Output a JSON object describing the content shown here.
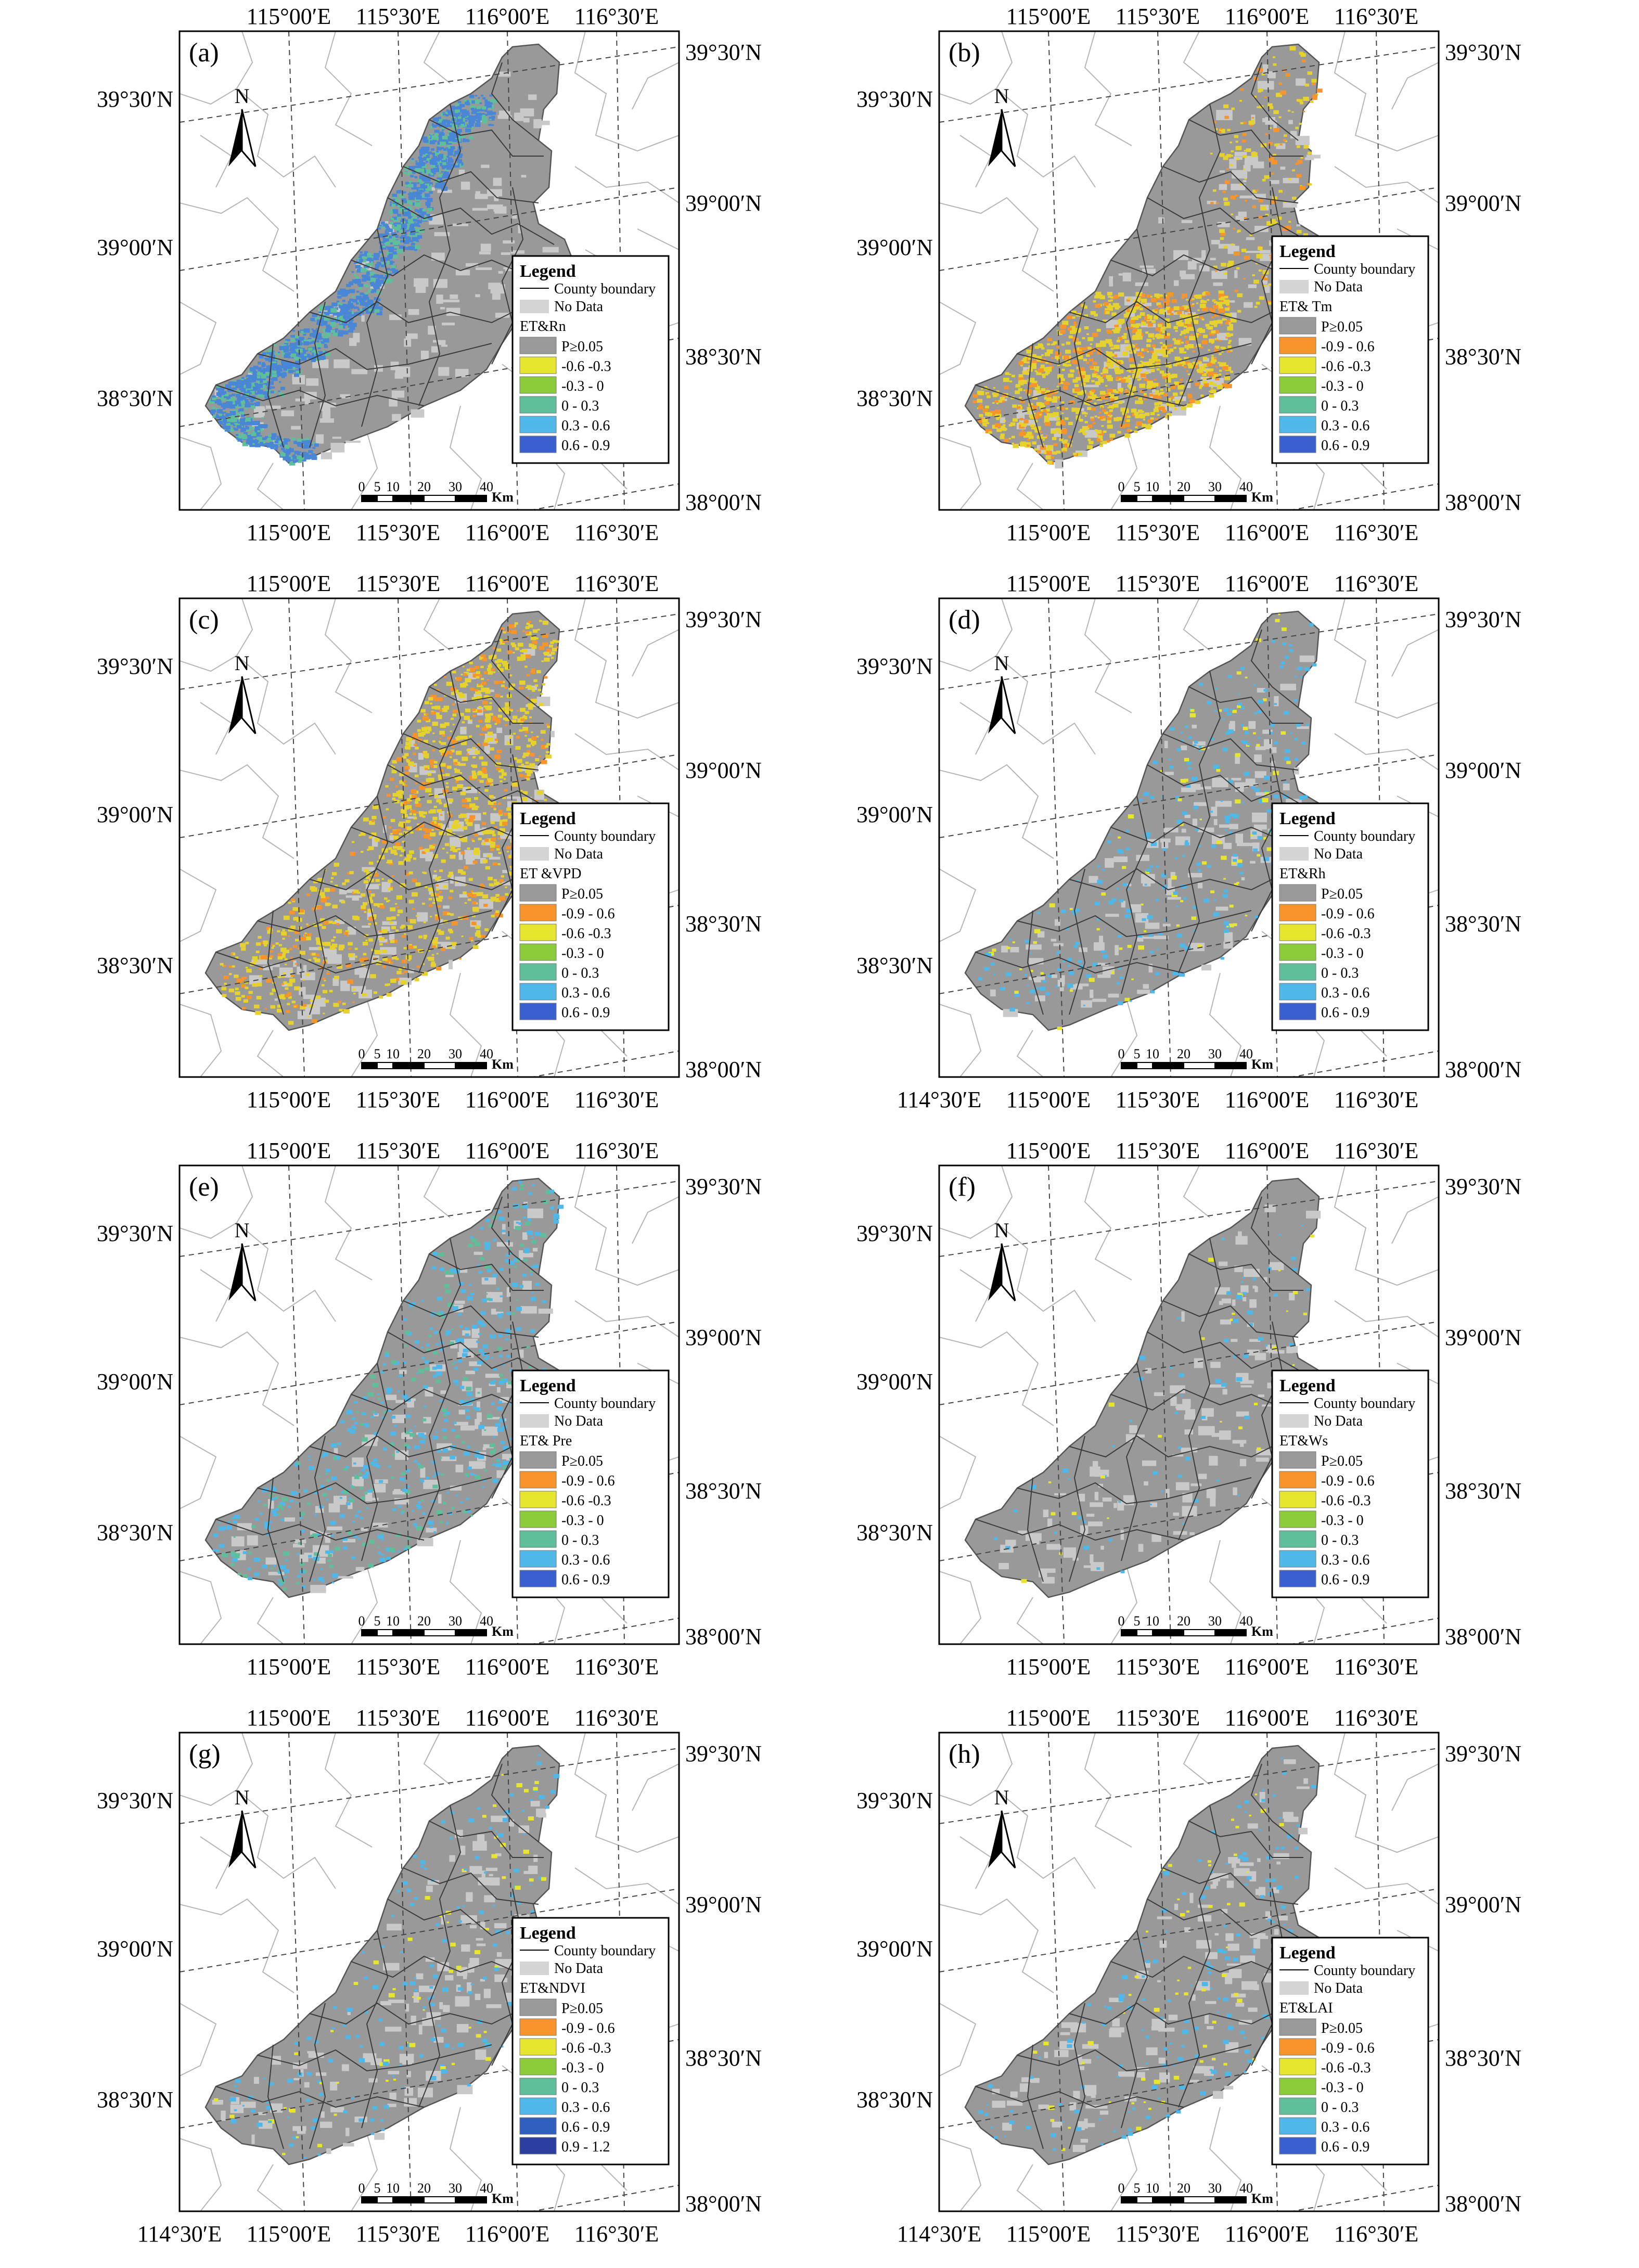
{
  "figure": {
    "panels": [
      {
        "id": "a",
        "panel_label": "(a)",
        "top_lon_labels": [
          "115°00′E",
          "115°30′E",
          "116°00′E",
          "116°30′E"
        ],
        "bottom_lon_labels": [
          "115°00′E",
          "115°30′E",
          "116°00′E",
          "116°30′E"
        ],
        "left_lat_labels": [
          "39°30′N",
          "39°00′N",
          "38°30′N"
        ],
        "right_lat_labels": [
          "39°30′N",
          "39°00′N",
          "38°30′N",
          "38°00′N"
        ],
        "legend": {
          "title": "Legend",
          "boundary_label": "County boundary",
          "nodata_label": "No Data",
          "variable_label": "ET&Rn",
          "classes": [
            {
              "label": "P≥0.05",
              "color": "#9a9a9a"
            },
            {
              "label": "-0.6 -0.3",
              "color": "#e6e62e"
            },
            {
              "label": "-0.3 - 0",
              "color": "#8ccc3a"
            },
            {
              "label": "0 - 0.3",
              "color": "#5fbf9a"
            },
            {
              "label": "0.3 - 0.6",
              "color": "#4fb8e8"
            },
            {
              "label": "0.6 - 0.9",
              "color": "#3a5fcf"
            }
          ]
        },
        "pattern": {
          "primary_color": "#4a86d6",
          "secondary_color": "#5fbf9a",
          "intensity": 0.85,
          "region": "southwest-edge"
        },
        "scale_ticks": [
          "0",
          "5",
          "10",
          "20",
          "30",
          "40"
        ],
        "scale_unit": "Km",
        "north_label": "N"
      },
      {
        "id": "b",
        "panel_label": "(b)",
        "top_lon_labels": [
          "115°00′E",
          "115°30′E",
          "116°00′E",
          "116°30′E"
        ],
        "bottom_lon_labels": [
          "115°00′E",
          "115°30′E",
          "116°00′E",
          "116°30′E"
        ],
        "left_lat_labels": [
          "39°30′N",
          "39°00′N",
          "38°30′N"
        ],
        "right_lat_labels": [
          "39°30′N",
          "39°00′N",
          "38°30′N",
          "38°00′N"
        ],
        "legend": {
          "title": "Legend",
          "boundary_label": "County boundary",
          "nodata_label": "No Data",
          "variable_label": "ET& Tm",
          "classes": [
            {
              "label": "P≥0.05",
              "color": "#9a9a9a"
            },
            {
              "label": "-0.9 - 0.6",
              "color": "#f7942c"
            },
            {
              "label": "-0.6 -0.3",
              "color": "#e6e62e"
            },
            {
              "label": "-0.3 - 0",
              "color": "#8ccc3a"
            },
            {
              "label": "0 - 0.3",
              "color": "#5fbf9a"
            },
            {
              "label": "0.3 - 0.6",
              "color": "#4fb8e8"
            },
            {
              "label": "0.6 - 0.9",
              "color": "#3a5fcf"
            }
          ]
        },
        "pattern": {
          "primary_color": "#e6d22e",
          "secondary_color": "#f7942c",
          "intensity": 0.8,
          "region": "southwest"
        },
        "scale_ticks": [
          "0",
          "5",
          "10",
          "20",
          "30",
          "40"
        ],
        "scale_unit": "Km",
        "north_label": "N"
      },
      {
        "id": "c",
        "panel_label": "(c)",
        "top_lon_labels": [
          "115°00′E",
          "115°30′E",
          "116°00′E",
          "116°30′E"
        ],
        "bottom_lon_labels": [
          "115°00′E",
          "115°30′E",
          "116°00′E",
          "116°30′E"
        ],
        "left_lat_labels": [
          "39°30′N",
          "39°00′N",
          "38°30′N"
        ],
        "right_lat_labels": [
          "39°30′N",
          "39°00′N",
          "38°30′N",
          "38°00′N"
        ],
        "legend": {
          "title": "Legend",
          "boundary_label": "County boundary",
          "nodata_label": "No Data",
          "variable_label": "ET &VPD",
          "classes": [
            {
              "label": "P≥0.05",
              "color": "#9a9a9a"
            },
            {
              "label": "-0.9 - 0.6",
              "color": "#f7942c"
            },
            {
              "label": "-0.6 -0.3",
              "color": "#e6e62e"
            },
            {
              "label": "-0.3 - 0",
              "color": "#8ccc3a"
            },
            {
              "label": "0 - 0.3",
              "color": "#5fbf9a"
            },
            {
              "label": "0.3 - 0.6",
              "color": "#4fb8e8"
            },
            {
              "label": "0.6 - 0.9",
              "color": "#3a5fcf"
            }
          ]
        },
        "pattern": {
          "primary_color": "#e6d22e",
          "secondary_color": "#f7942c",
          "intensity": 0.9,
          "region": "widespread"
        },
        "scale_ticks": [
          "0",
          "5",
          "10",
          "20",
          "30",
          "40"
        ],
        "scale_unit": "Km",
        "north_label": "N"
      },
      {
        "id": "d",
        "panel_label": "(d)",
        "top_lon_labels": [
          "115°00′E",
          "115°30′E",
          "116°00′E",
          "116°30′E"
        ],
        "bottom_lon_labels": [
          "114°30′E",
          "115°00′E",
          "115°30′E",
          "116°00′E",
          "116°30′E"
        ],
        "left_lat_labels": [
          "39°30′N",
          "39°00′N",
          "38°30′N"
        ],
        "right_lat_labels": [
          "39°30′N",
          "39°00′N",
          "38°30′N",
          "38°00′N"
        ],
        "legend": {
          "title": "Legend",
          "boundary_label": "County boundary",
          "nodata_label": "No Data",
          "variable_label": "ET&Rh",
          "classes": [
            {
              "label": "P≥0.05",
              "color": "#9a9a9a"
            },
            {
              "label": "-0.9 - 0.6",
              "color": "#f7942c"
            },
            {
              "label": "-0.6 -0.3",
              "color": "#e6e62e"
            },
            {
              "label": "-0.3 - 0",
              "color": "#8ccc3a"
            },
            {
              "label": "0 - 0.3",
              "color": "#5fbf9a"
            },
            {
              "label": "0.3 - 0.6",
              "color": "#4fb8e8"
            },
            {
              "label": "0.6 - 0.9",
              "color": "#3a5fcf"
            }
          ]
        },
        "pattern": {
          "primary_color": "#4fb8e8",
          "secondary_color": "#e6e62e",
          "intensity": 0.3,
          "region": "scattered"
        },
        "scale_ticks": [
          "0",
          "5",
          "10",
          "20",
          "30",
          "40"
        ],
        "scale_unit": "Km",
        "north_label": "N"
      },
      {
        "id": "e",
        "panel_label": "(e)",
        "top_lon_labels": [
          "115°00′E",
          "115°30′E",
          "116°00′E",
          "116°30′E"
        ],
        "bottom_lon_labels": [
          "115°00′E",
          "115°30′E",
          "116°00′E",
          "116°30′E"
        ],
        "left_lat_labels": [
          "39°30′N",
          "39°00′N",
          "38°30′N"
        ],
        "right_lat_labels": [
          "39°30′N",
          "39°00′N",
          "38°30′N",
          "38°00′N"
        ],
        "legend": {
          "title": "Legend",
          "boundary_label": "County boundary",
          "nodata_label": "No Data",
          "variable_label": "ET& Pre",
          "classes": [
            {
              "label": "P≥0.05",
              "color": "#9a9a9a"
            },
            {
              "label": "-0.9 - 0.6",
              "color": "#f7942c"
            },
            {
              "label": "-0.6 -0.3",
              "color": "#e6e62e"
            },
            {
              "label": "-0.3 - 0",
              "color": "#8ccc3a"
            },
            {
              "label": "0 - 0.3",
              "color": "#5fbf9a"
            },
            {
              "label": "0.3 - 0.6",
              "color": "#4fb8e8"
            },
            {
              "label": "0.6 - 0.9",
              "color": "#3a5fcf"
            }
          ]
        },
        "pattern": {
          "primary_color": "#4fb8e8",
          "secondary_color": "#5fbf9a",
          "intensity": 0.55,
          "region": "scattered"
        },
        "scale_ticks": [
          "0",
          "5",
          "10",
          "20",
          "30",
          "40"
        ],
        "scale_unit": "Km",
        "north_label": "N"
      },
      {
        "id": "f",
        "panel_label": "(f)",
        "top_lon_labels": [
          "115°00′E",
          "115°30′E",
          "116°00′E",
          "116°30′E"
        ],
        "bottom_lon_labels": [
          "115°00′E",
          "115°30′E",
          "116°00′E",
          "116°30′E"
        ],
        "left_lat_labels": [
          "39°30′N",
          "39°00′N",
          "38°30′N"
        ],
        "right_lat_labels": [
          "39°30′N",
          "39°00′N",
          "38°30′N",
          "38°00′N"
        ],
        "legend": {
          "title": "Legend",
          "boundary_label": "County boundary",
          "nodata_label": "No Data",
          "variable_label": "ET&Ws",
          "classes": [
            {
              "label": "P≥0.05",
              "color": "#9a9a9a"
            },
            {
              "label": "-0.9 - 0.6",
              "color": "#f7942c"
            },
            {
              "label": "-0.6 -0.3",
              "color": "#e6e62e"
            },
            {
              "label": "-0.3 - 0",
              "color": "#8ccc3a"
            },
            {
              "label": "0 - 0.3",
              "color": "#5fbf9a"
            },
            {
              "label": "0.3 - 0.6",
              "color": "#4fb8e8"
            },
            {
              "label": "0.6 - 0.9",
              "color": "#3a5fcf"
            }
          ]
        },
        "pattern": {
          "primary_color": "#4fb8e8",
          "secondary_color": "#e6e62e",
          "intensity": 0.08,
          "region": "scattered"
        },
        "scale_ticks": [
          "0",
          "5",
          "10",
          "20",
          "30",
          "40"
        ],
        "scale_unit": "Km",
        "north_label": "N"
      },
      {
        "id": "g",
        "panel_label": "(g)",
        "top_lon_labels": [
          "115°00′E",
          "115°30′E",
          "116°00′E",
          "116°30′E"
        ],
        "bottom_lon_labels": [
          "114°30′E",
          "115°00′E",
          "115°30′E",
          "116°00′E",
          "116°30′E"
        ],
        "left_lat_labels": [
          "39°30′N",
          "39°00′N",
          "38°30′N"
        ],
        "right_lat_labels": [
          "39°30′N",
          "39°00′N",
          "38°30′N",
          "38°00′N"
        ],
        "legend": {
          "title": "Legend",
          "boundary_label": "County boundary",
          "nodata_label": "No Data",
          "variable_label": "ET&NDVI",
          "classes": [
            {
              "label": "P≥0.05",
              "color": "#9a9a9a"
            },
            {
              "label": "-0.9 - 0.6",
              "color": "#f7942c"
            },
            {
              "label": "-0.6 -0.3",
              "color": "#e6e62e"
            },
            {
              "label": "-0.3 - 0",
              "color": "#8ccc3a"
            },
            {
              "label": "0 - 0.3",
              "color": "#5fbf9a"
            },
            {
              "label": "0.3 - 0.6",
              "color": "#4fb8e8"
            },
            {
              "label": "0.6 - 0.9",
              "color": "#2f5fbf"
            },
            {
              "label": "0.9 - 1.2",
              "color": "#2a3fa0"
            }
          ]
        },
        "pattern": {
          "primary_color": "#4fb8e8",
          "secondary_color": "#e6e62e",
          "intensity": 0.2,
          "region": "scattered"
        },
        "scale_ticks": [
          "0",
          "5",
          "10",
          "20",
          "30",
          "40"
        ],
        "scale_unit": "Km",
        "north_label": "N"
      },
      {
        "id": "h",
        "panel_label": "(h)",
        "top_lon_labels": [
          "115°00′E",
          "115°30′E",
          "116°00′E",
          "116°30′E"
        ],
        "bottom_lon_labels": [
          "114°30′E",
          "115°00′E",
          "115°30′E",
          "116°00′E",
          "116°30′E"
        ],
        "left_lat_labels": [
          "39°30′N",
          "39°00′N",
          "38°30′N"
        ],
        "right_lat_labels": [
          "39°30′N",
          "39°00′N",
          "38°30′N",
          "38°00′N"
        ],
        "legend": {
          "title": "Legend",
          "boundary_label": "County boundary",
          "nodata_label": "No Data",
          "variable_label": "ET&LAI",
          "classes": [
            {
              "label": "P≥0.05",
              "color": "#9a9a9a"
            },
            {
              "label": "-0.9 - 0.6",
              "color": "#f7942c"
            },
            {
              "label": "-0.6 -0.3",
              "color": "#e6e62e"
            },
            {
              "label": "-0.3 - 0",
              "color": "#8ccc3a"
            },
            {
              "label": "0 - 0.3",
              "color": "#5fbf9a"
            },
            {
              "label": "0.3 - 0.6",
              "color": "#4fb8e8"
            },
            {
              "label": "0.6 - 0.9",
              "color": "#3a5fcf"
            }
          ]
        },
        "pattern": {
          "primary_color": "#4fb8e8",
          "secondary_color": "#e6e62e",
          "intensity": 0.2,
          "region": "scattered"
        },
        "scale_ticks": [
          "0",
          "5",
          "10",
          "20",
          "30",
          "40"
        ],
        "scale_unit": "Km",
        "north_label": "N"
      }
    ]
  }
}
